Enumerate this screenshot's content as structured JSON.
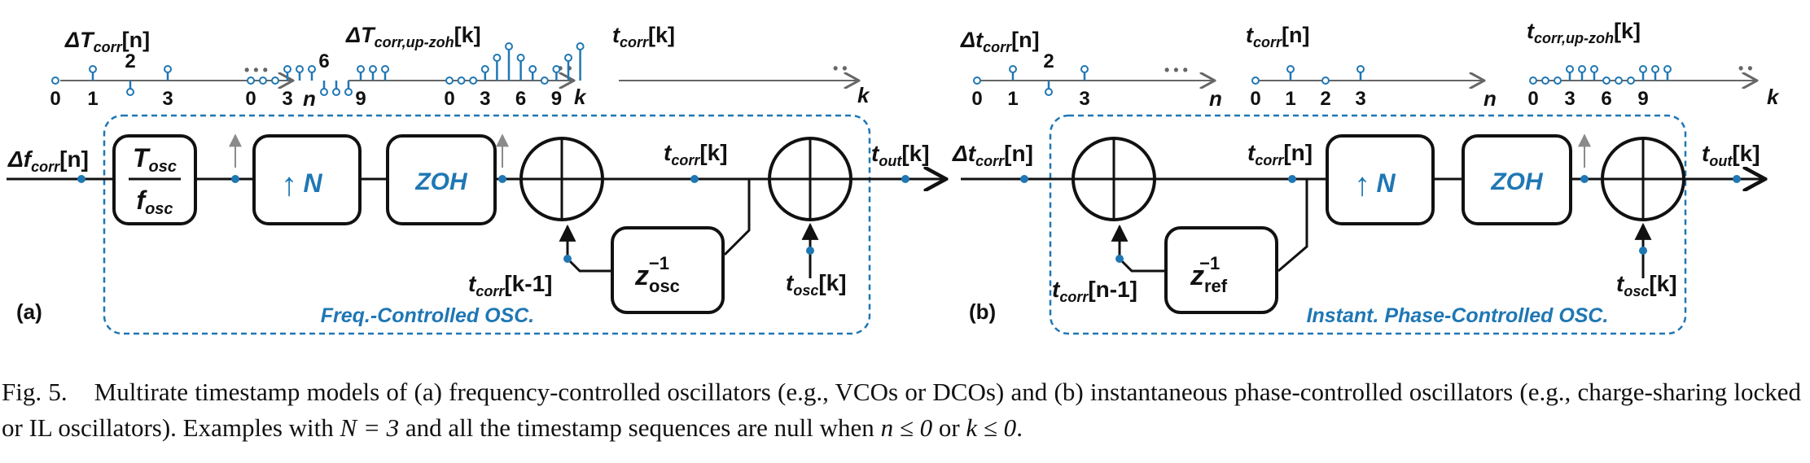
{
  "colors": {
    "accent": "#1f77b4",
    "ink": "#111111",
    "axis": "#555555",
    "arrow_hint": "#8a8a8a"
  },
  "panel_a": {
    "tag": "(a)",
    "title": "Freq.-Controlled OSC.",
    "input": {
      "label": "Δf",
      "sub": "corr",
      "arg": "[n]"
    },
    "block_osc": {
      "num": "T",
      "num_sub": "osc",
      "den": "f",
      "den_sub": "osc"
    },
    "block_up": {
      "symbol": "↑",
      "label": "N"
    },
    "block_zoh": {
      "label": "ZOH"
    },
    "block_delay": {
      "base": "z",
      "sup": "−1",
      "sub": "osc"
    },
    "t_corr_k": {
      "label": "t",
      "sub": "corr",
      "arg": "[k]"
    },
    "t_corr_km1": {
      "label": "t",
      "sub": "corr",
      "arg": "[k-1]"
    },
    "t_osc_k": {
      "label": "t",
      "sub": "osc",
      "arg": "[k]"
    },
    "t_out_k": {
      "label": "t",
      "sub": "out",
      "arg": "[k]"
    },
    "seq1": {
      "label": "ΔT",
      "sub": "corr",
      "arg": "[n]",
      "axis": "n",
      "ticks": [
        "0",
        "1",
        "2",
        "3"
      ],
      "ellipsis": "• • •"
    },
    "seq2": {
      "label": "ΔT",
      "sub": "corr,up-zoh",
      "arg": "[k]",
      "axis": "k",
      "ticks": [
        "0",
        "3",
        "6",
        "9"
      ],
      "ellipsis": "• •"
    },
    "seq3": {
      "label": "t",
      "sub": "corr",
      "arg": "[k]",
      "axis": "k",
      "ticks": [
        "0",
        "3",
        "6",
        "9"
      ],
      "ellipsis": "• •"
    }
  },
  "panel_b": {
    "tag": "(b)",
    "title": "Instant. Phase-Controlled OSC.",
    "input": {
      "label": "Δt",
      "sub": "corr",
      "arg": "[n]"
    },
    "block_up": {
      "symbol": "↑",
      "label": "N"
    },
    "block_zoh": {
      "label": "ZOH"
    },
    "block_delay": {
      "base": "z",
      "sup": "−1",
      "sub": "ref"
    },
    "t_corr_n": {
      "label": "t",
      "sub": "corr",
      "arg": "[n]"
    },
    "t_corr_nm1": {
      "label": "t",
      "sub": "corr",
      "arg": "[n-1]"
    },
    "t_osc_k": {
      "label": "t",
      "sub": "osc",
      "arg": "[k]"
    },
    "t_out_k": {
      "label": "t",
      "sub": "out",
      "arg": "[k]"
    },
    "seq1": {
      "label": "Δt",
      "sub": "corr",
      "arg": "[n]",
      "axis": "n",
      "ticks": [
        "0",
        "1",
        "2",
        "3"
      ],
      "ellipsis": "• • •"
    },
    "seq2": {
      "label": "t",
      "sub": "corr",
      "arg": "[n]",
      "axis": "n",
      "ticks": [
        "0",
        "1",
        "2",
        "3"
      ],
      "ellipsis": "• • •"
    },
    "seq3": {
      "label": "t",
      "sub": "corr,up-zoh",
      "arg": "[k]",
      "axis": "k",
      "ticks": [
        "0",
        "3",
        "6",
        "9"
      ],
      "ellipsis": "• •"
    }
  },
  "caption": {
    "label": "Fig. 5.",
    "text1": "Multirate timestamp models of (a) frequency-controlled oscillators (e.g., VCOs or DCOs) and (b) instantaneous phase-controlled oscillators (e.g., charge-sharing locked or IL oscillators). Examples with ",
    "n_eq": "N = 3",
    "text2": " and all the timestamp sequences are null when ",
    "cond1": "n ≤ 0",
    "text3": " or ",
    "cond2": "k ≤ 0",
    "text4": "."
  }
}
